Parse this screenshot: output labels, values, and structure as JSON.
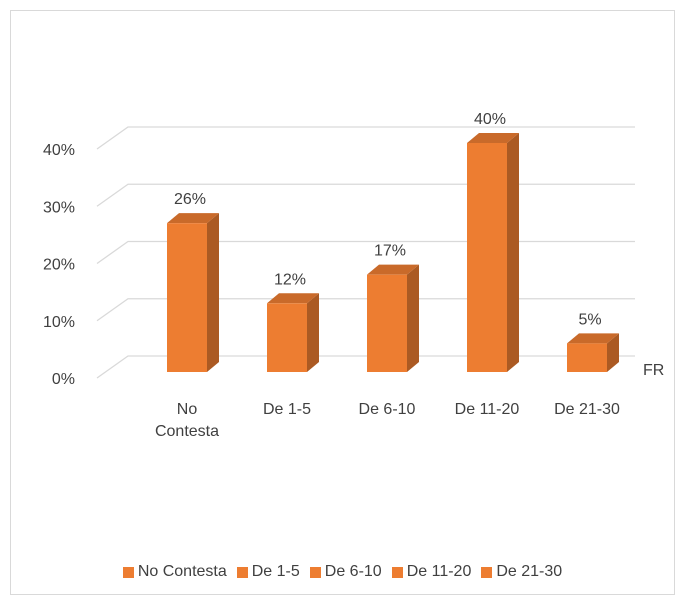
{
  "chart_data": {
    "type": "bar3d",
    "categories": [
      "No Contesta",
      "De 1-5",
      "De 6-10",
      "De 11-20",
      "De 21-30"
    ],
    "series": [
      {
        "name": "FR",
        "color": "#ed7d31",
        "values": [
          26,
          12,
          17,
          40,
          5
        ],
        "value_labels": [
          "26%",
          "12%",
          "17%",
          "40%",
          "5%"
        ]
      }
    ],
    "ylim": [
      0,
      40
    ],
    "yticks": [
      {
        "value": 0,
        "label": "0%"
      },
      {
        "value": 10,
        "label": "10%"
      },
      {
        "value": 20,
        "label": "20%"
      },
      {
        "value": 30,
        "label": "30%"
      },
      {
        "value": 40,
        "label": "40%"
      }
    ],
    "grid": true,
    "legend": "bottom"
  }
}
